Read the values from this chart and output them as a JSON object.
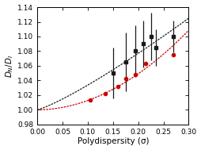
{
  "title": "",
  "xlabel": "Polydispersity (σ)",
  "ylabel": "$D_N/D_I$",
  "xlim": [
    0.0,
    0.3
  ],
  "ylim": [
    0.98,
    1.14
  ],
  "xticks": [
    0.0,
    0.05,
    0.1,
    0.15,
    0.2,
    0.25,
    0.3
  ],
  "yticks": [
    0.98,
    1.0,
    1.02,
    1.04,
    1.06,
    1.08,
    1.1,
    1.12,
    1.14
  ],
  "black_points_x": [
    0.15,
    0.175,
    0.195,
    0.21,
    0.225,
    0.235,
    0.27
  ],
  "black_points_y": [
    1.05,
    1.065,
    1.08,
    1.09,
    1.1,
    1.085,
    1.1
  ],
  "black_errors_up": [
    0.035,
    0.04,
    0.035,
    0.032,
    0.032,
    0.025,
    0.022
  ],
  "black_errors_dn": [
    0.035,
    0.04,
    0.035,
    0.032,
    0.032,
    0.025,
    0.022
  ],
  "red_points_x": [
    0.105,
    0.135,
    0.16,
    0.175,
    0.195,
    0.215,
    0.27
  ],
  "red_points_y": [
    1.013,
    1.022,
    1.032,
    1.043,
    1.048,
    1.063,
    1.075
  ],
  "black_curve_a": 2.8,
  "black_curve_b": 3.5,
  "red_curve_a": 1.2,
  "red_curve_b": 3.5,
  "black_curve_color": "#1a1a1a",
  "red_curve_color": "#cc0000",
  "background_color": "#ffffff",
  "fontsize_label": 7.5,
  "fontsize_tick": 6.5
}
